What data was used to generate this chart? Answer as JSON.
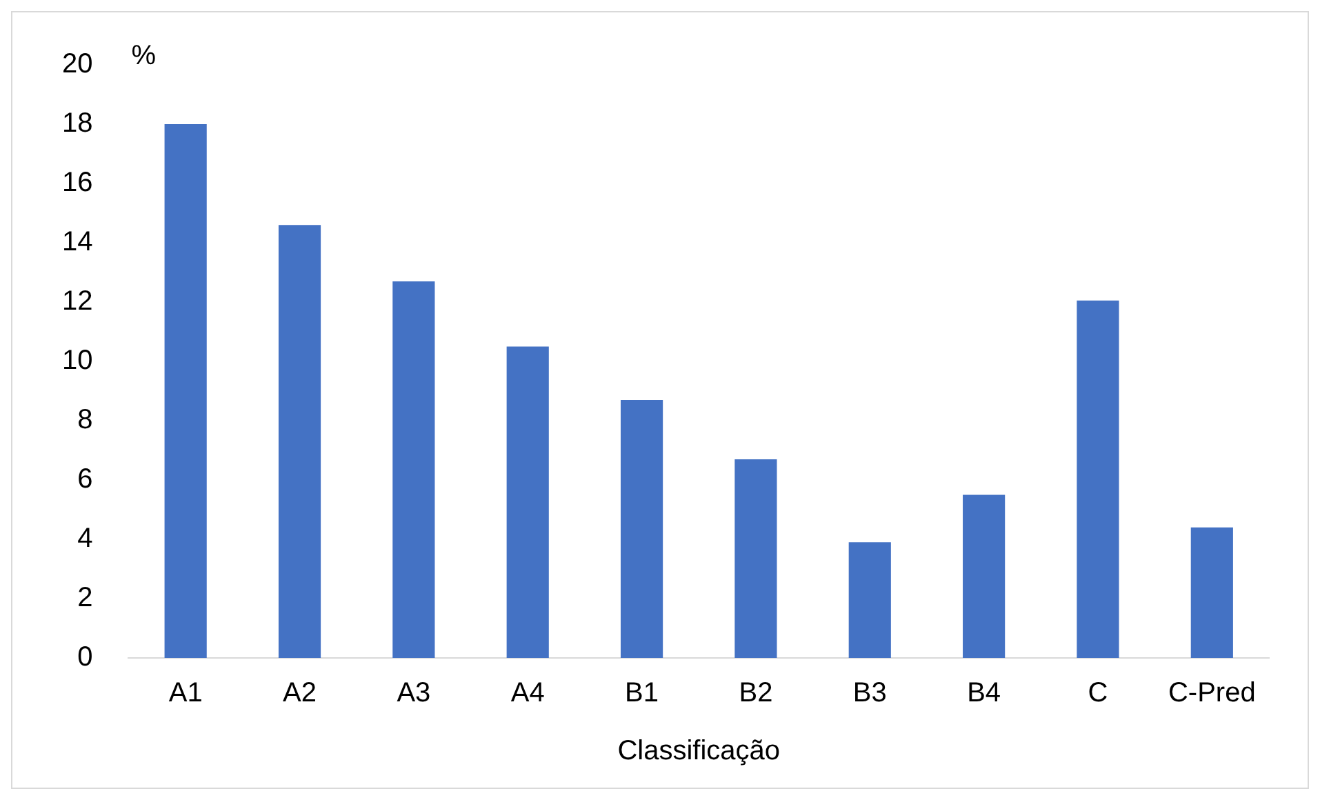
{
  "chart_data": {
    "type": "bar",
    "ylabel": "%",
    "xlabel": "Classificação",
    "categories": [
      "A1",
      "A2",
      "A3",
      "A4",
      "B1",
      "B2",
      "B3",
      "B4",
      "C",
      "C-Pred"
    ],
    "values": [
      18.0,
      14.6,
      12.7,
      10.5,
      8.7,
      6.7,
      3.9,
      5.5,
      12.05,
      4.4
    ],
    "color": "#4472c4",
    "ylim": [
      0,
      20
    ],
    "yticks": [
      0,
      2,
      4,
      6,
      8,
      10,
      12,
      14,
      16,
      18,
      20
    ],
    "grid": false,
    "legend": false
  }
}
